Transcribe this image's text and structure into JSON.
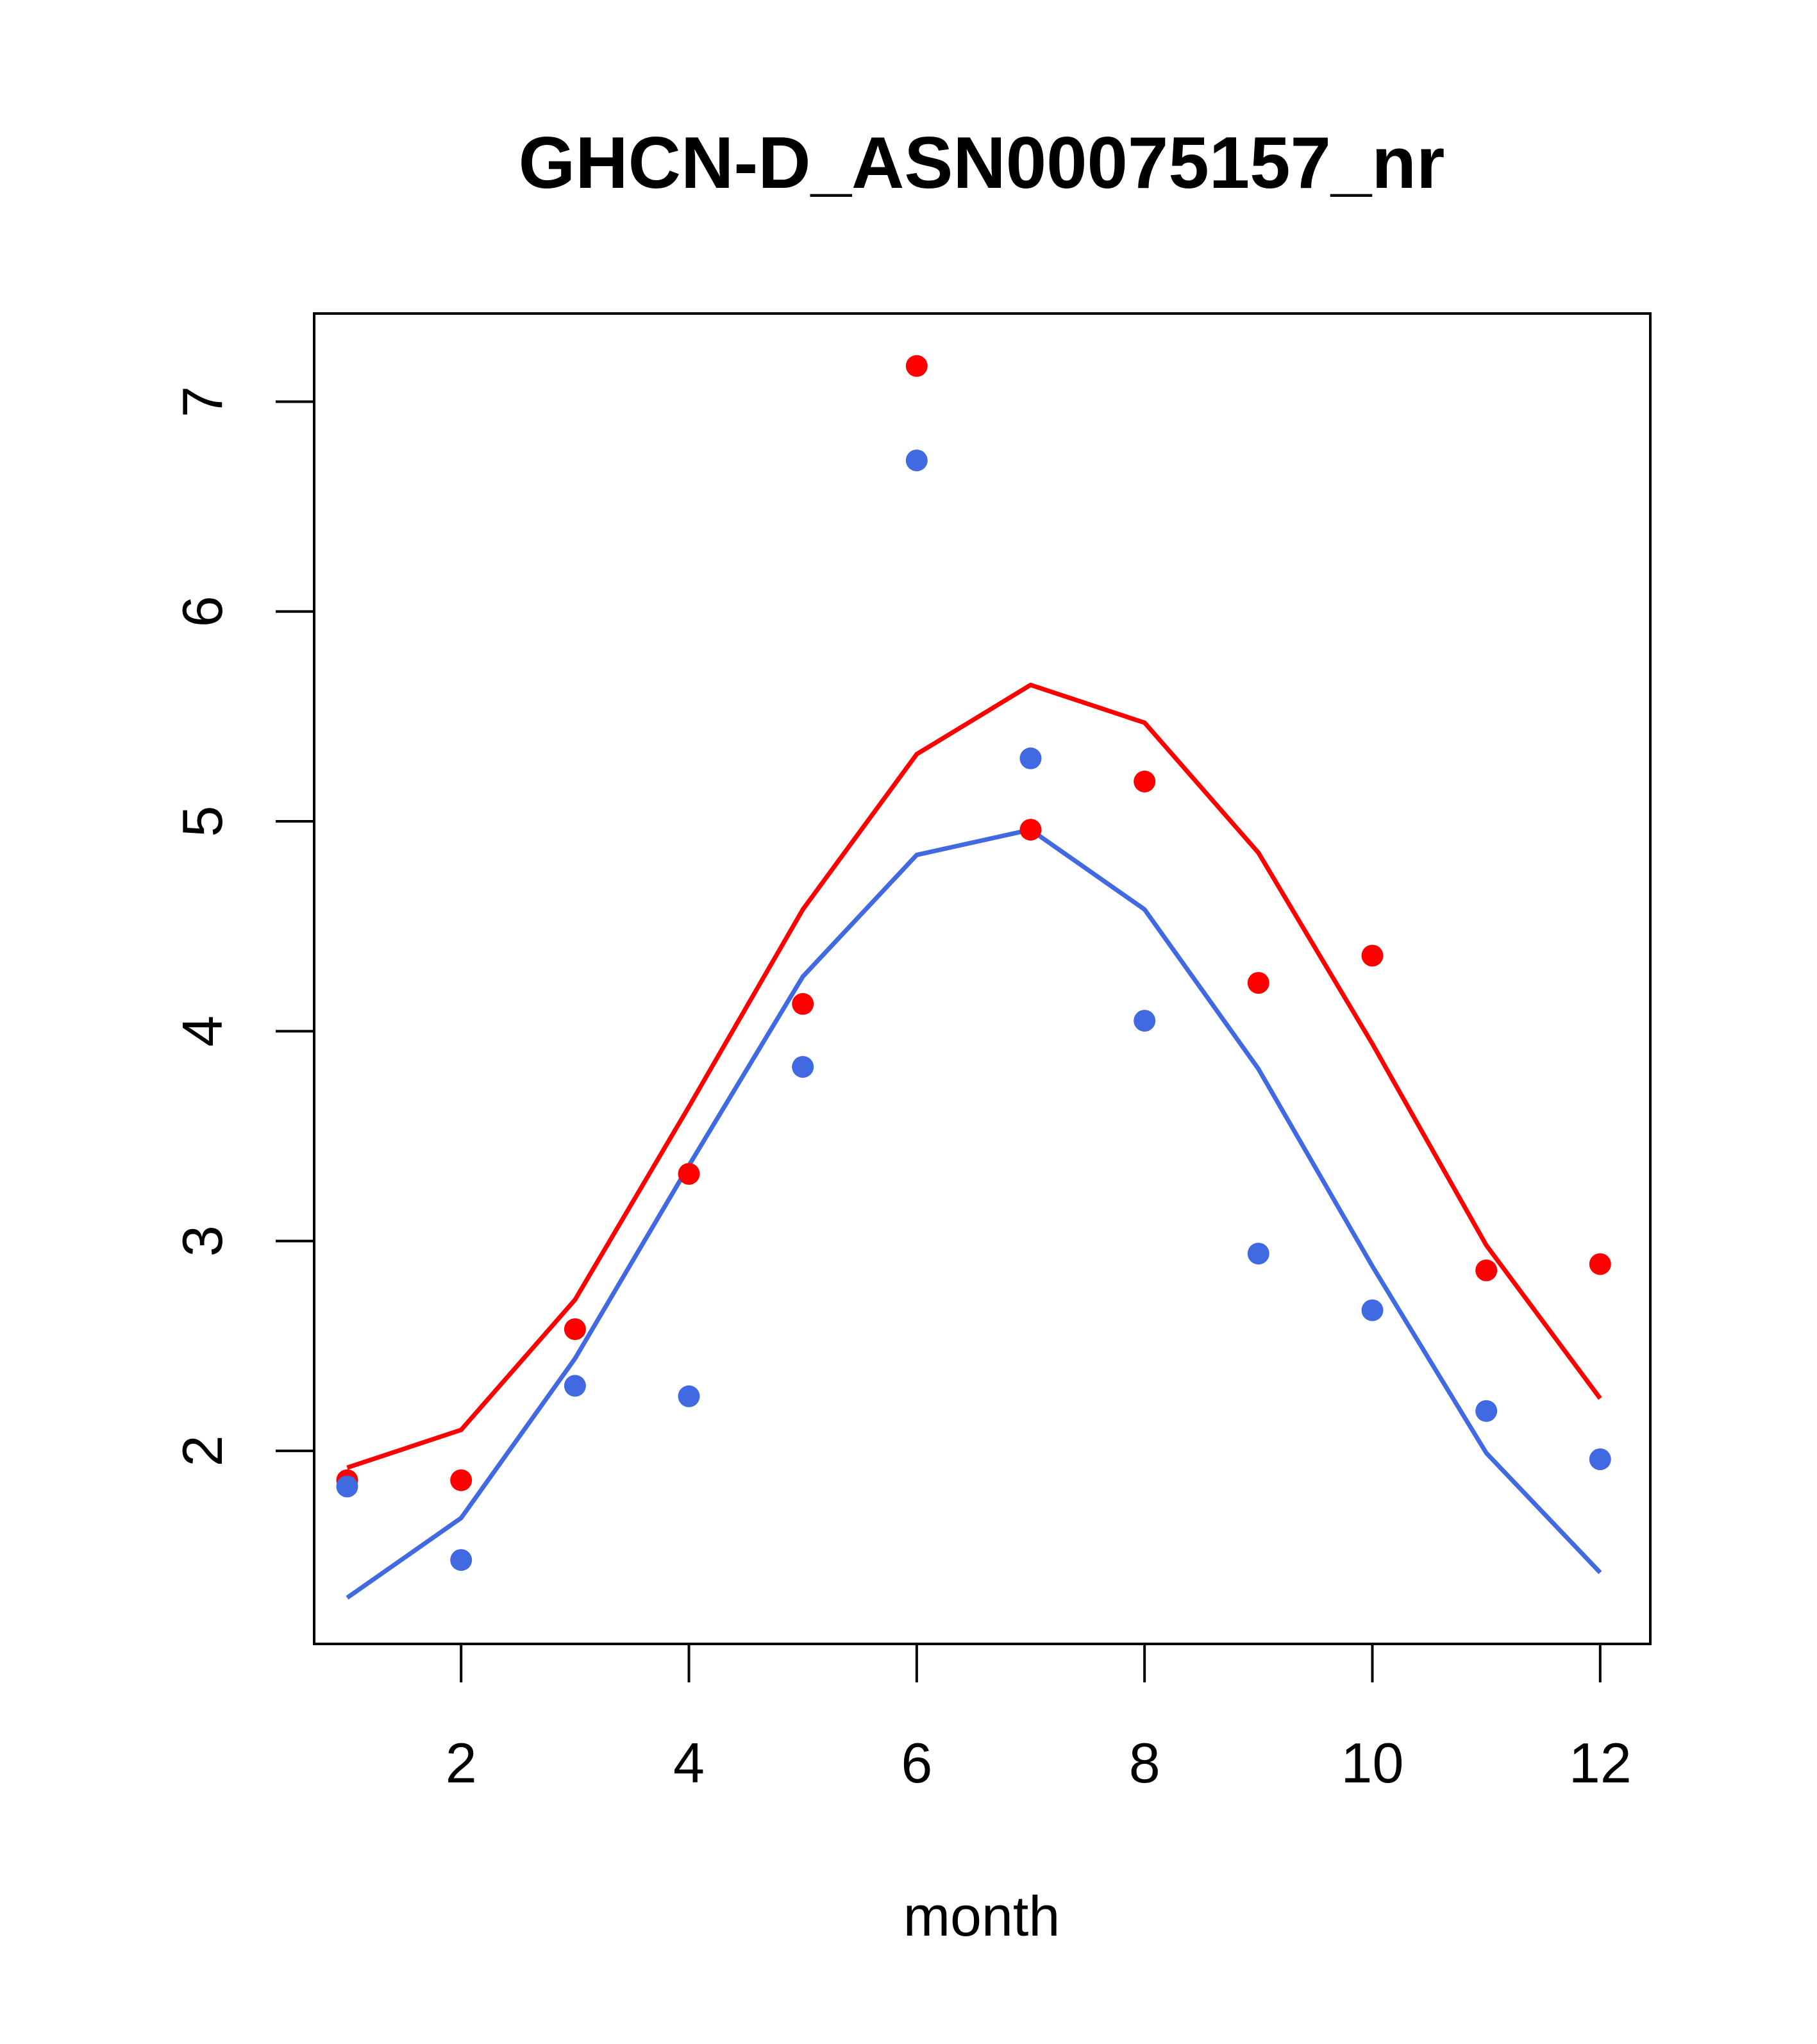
{
  "chart_data": {
    "type": "scatter",
    "title": "GHCN-D_ASN00075157_nr",
    "xlabel": "month",
    "ylabel": "",
    "xlim": [
      0.71,
      12.44
    ],
    "ylim": [
      1.08,
      7.42
    ],
    "x_ticks": [
      2,
      4,
      6,
      8,
      10,
      12
    ],
    "y_ticks": [
      2,
      3,
      4,
      5,
      6,
      7
    ],
    "grid": false,
    "x": [
      1,
      2,
      3,
      4,
      5,
      6,
      7,
      8,
      9,
      10,
      11,
      12
    ],
    "series": [
      {
        "kind": "points",
        "color": "#ff0000",
        "values": [
          1.86,
          1.86,
          2.58,
          3.32,
          4.13,
          7.17,
          4.96,
          5.19,
          4.23,
          4.36,
          2.86,
          2.89
        ]
      },
      {
        "kind": "points",
        "color": "#4169e1",
        "values": [
          1.83,
          1.48,
          2.31,
          2.26,
          3.83,
          6.72,
          5.3,
          4.05,
          2.94,
          2.67,
          2.19,
          1.96
        ]
      },
      {
        "kind": "line",
        "color": "#ff0000",
        "values": [
          1.92,
          2.1,
          2.72,
          3.64,
          4.58,
          5.32,
          5.65,
          5.47,
          4.85,
          3.94,
          2.98,
          2.25
        ]
      },
      {
        "kind": "line",
        "color": "#4169e1",
        "values": [
          1.3,
          1.68,
          2.44,
          3.36,
          4.26,
          4.84,
          4.96,
          4.58,
          3.82,
          2.88,
          1.99,
          1.42
        ]
      }
    ]
  }
}
